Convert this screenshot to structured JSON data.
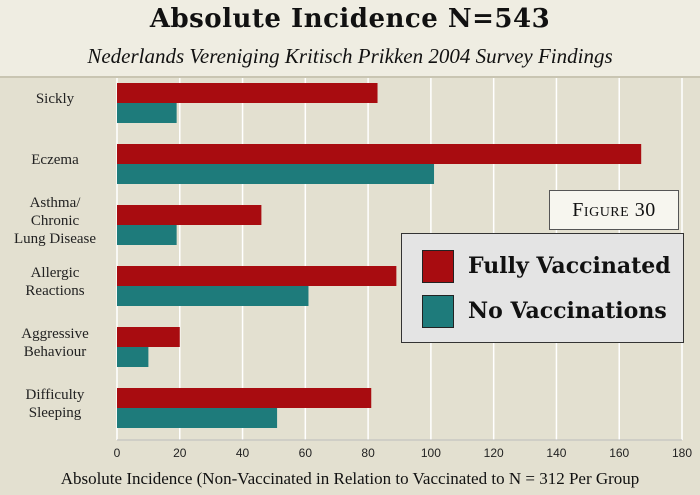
{
  "title": "Absolute Incidence N=543",
  "subtitle": "Nederlands Vereniging Kritisch Prikken 2004 Survey Findings",
  "figure_label": "Figure 30",
  "colors": {
    "vaccinated": "#a80c10",
    "unvaccinated": "#1e7b7b",
    "grid": "#ffffff",
    "background": "#e3e0d0"
  },
  "chart_data": {
    "type": "bar",
    "orientation": "horizontal",
    "title": "Absolute Incidence N=543",
    "subtitle": "Nederlands Vereniging Kritisch Prikken 2004 Survey Findings",
    "xlabel": "Absolute Incidence (Non-Vaccinated in Relation to Vaccinated to N = 312 Per Group",
    "ylabel": "",
    "xlim": [
      0,
      180
    ],
    "xticks": [
      0,
      20,
      40,
      60,
      80,
      100,
      120,
      140,
      160,
      180
    ],
    "grid": true,
    "legend_position": "right",
    "categories": [
      [
        "Sickly"
      ],
      [
        "Eczema"
      ],
      [
        "Asthma/",
        "Chronic",
        "Lung Disease"
      ],
      [
        "Allergic",
        "Reactions"
      ],
      [
        "Aggressive",
        "Behaviour"
      ],
      [
        "Difficulty",
        "Sleeping"
      ]
    ],
    "series": [
      {
        "name": "Fully Vaccinated",
        "values": [
          83,
          167,
          46,
          89,
          20,
          81
        ]
      },
      {
        "name": "No Vaccinations",
        "values": [
          19,
          101,
          19,
          61,
          10,
          51
        ]
      }
    ]
  }
}
